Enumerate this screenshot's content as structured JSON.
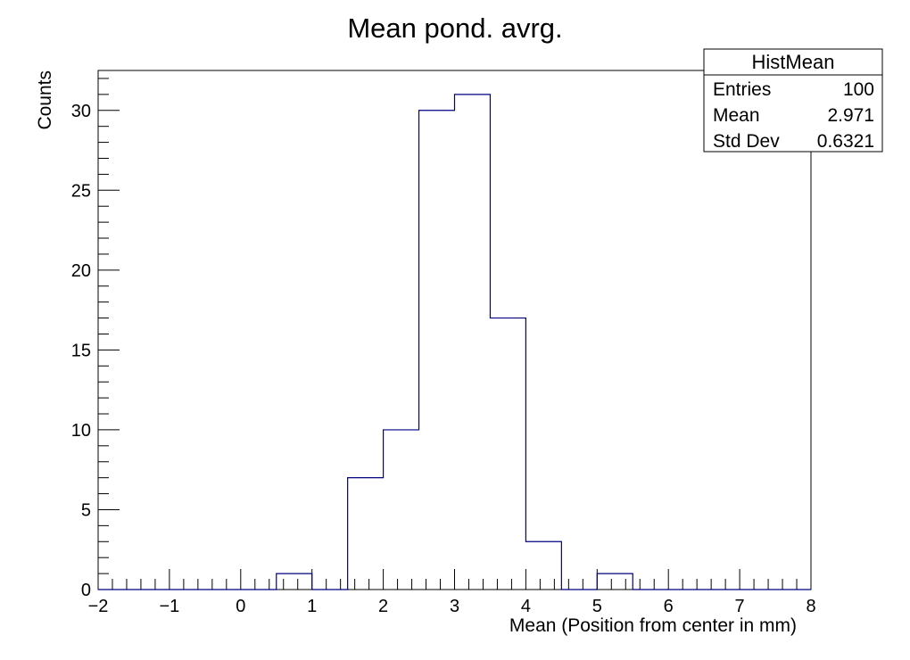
{
  "chart_data": {
    "type": "bar",
    "title": "Mean pond. avrg.",
    "xlabel": "Mean (Position from center in mm)",
    "ylabel": "Counts",
    "xlim": [
      -2,
      8
    ],
    "ylim": [
      0,
      32.5
    ],
    "bin_width": 0.5,
    "bins": [
      {
        "x0": 0.5,
        "x1": 1.0,
        "value": 1
      },
      {
        "x0": 1.5,
        "x1": 2.0,
        "value": 7
      },
      {
        "x0": 2.0,
        "x1": 2.5,
        "value": 10
      },
      {
        "x0": 2.5,
        "x1": 3.0,
        "value": 30
      },
      {
        "x0": 3.0,
        "x1": 3.5,
        "value": 31
      },
      {
        "x0": 3.5,
        "x1": 4.0,
        "value": 17
      },
      {
        "x0": 4.0,
        "x1": 4.5,
        "value": 3
      },
      {
        "x0": 5.0,
        "x1": 5.5,
        "value": 1
      }
    ],
    "x_ticks": [
      -2,
      -1,
      0,
      1,
      2,
      3,
      4,
      5,
      6,
      7,
      8
    ],
    "x_tick_labels": [
      "−2",
      "−1",
      "0",
      "1",
      "2",
      "3",
      "4",
      "5",
      "6",
      "7",
      "8"
    ],
    "y_ticks": [
      0,
      5,
      10,
      15,
      20,
      25,
      30
    ],
    "y_tick_labels": [
      "0",
      "5",
      "10",
      "15",
      "20",
      "25",
      "30"
    ],
    "line_color": "#000080",
    "grid": false,
    "stats_box": {
      "title": "HistMean",
      "rows": [
        {
          "label": "Entries",
          "value": "100"
        },
        {
          "label": "Mean",
          "value": "2.971"
        },
        {
          "label": "Std Dev",
          "value": "0.6321"
        }
      ],
      "position": "top-right"
    }
  }
}
